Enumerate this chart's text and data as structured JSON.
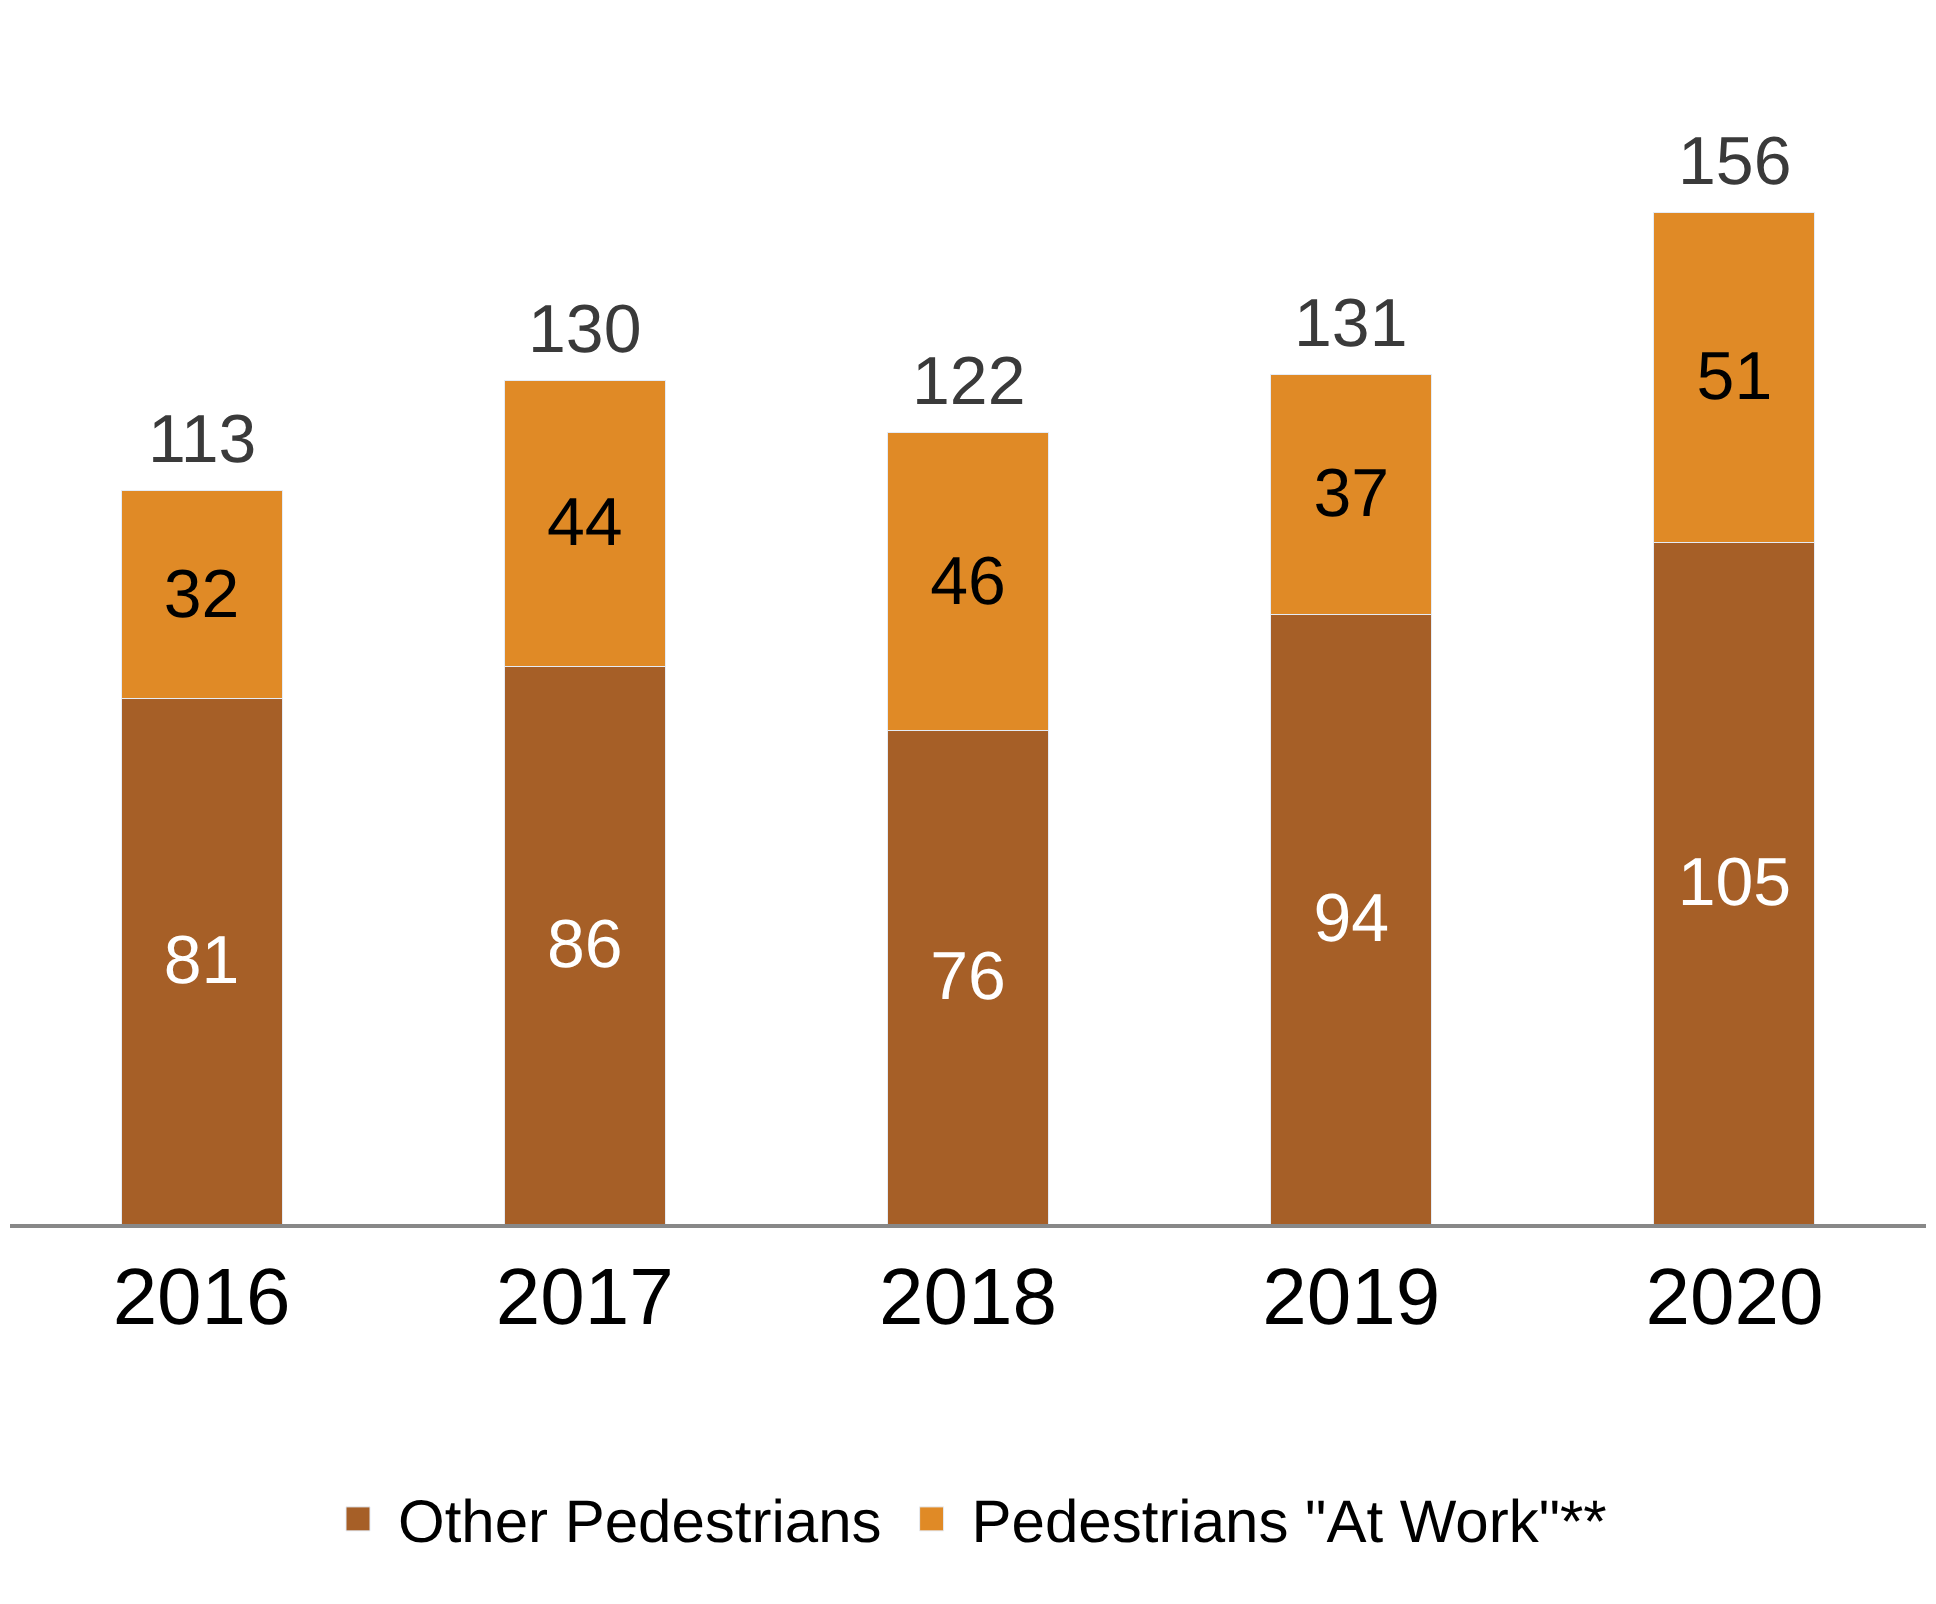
{
  "chart_data": {
    "type": "bar",
    "stacked": true,
    "categories": [
      "2016",
      "2017",
      "2018",
      "2019",
      "2020"
    ],
    "series": [
      {
        "name": "Other Pedestrians",
        "color": "#a65f27",
        "values": [
          81,
          86,
          76,
          94,
          105
        ]
      },
      {
        "name": "Pedestrians \"At Work\"**",
        "color": "#e08a26",
        "values": [
          32,
          44,
          46,
          37,
          51
        ]
      }
    ],
    "data_labels": true,
    "totals": [
      "113",
      "130",
      "122",
      "131",
      "156"
    ],
    "legend": "bottom"
  }
}
